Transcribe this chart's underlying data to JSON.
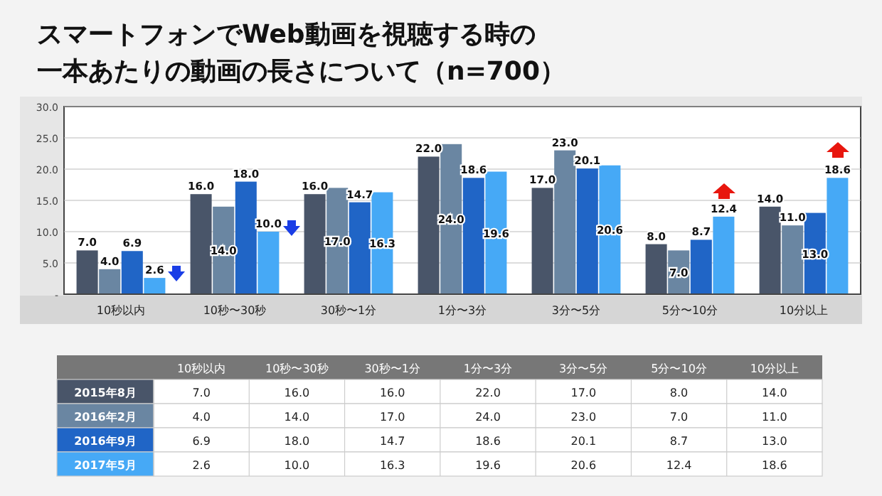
{
  "chart_data": {
    "type": "bar",
    "title": "スマートフォンでWeb動画を視聴する時の",
    "subtitle": "一本あたりの動画の長さについて（n=700）",
    "categories": [
      "10秒以内",
      "10秒〜30秒",
      "30秒〜1分",
      "1分〜3分",
      "3分〜5分",
      "5分〜10分",
      "10分以上"
    ],
    "series": [
      {
        "name": "2015年8月",
        "color": "#495569",
        "values": [
          7.0,
          16.0,
          16.0,
          22.0,
          17.0,
          8.0,
          14.0
        ],
        "value_labels": [
          "7.0",
          "16.0",
          "16.0",
          "22.0",
          "17.0",
          "8.0",
          "14.0"
        ]
      },
      {
        "name": "2016年2月",
        "color": "#6a86a2",
        "values": [
          4.0,
          14.0,
          17.0,
          24.0,
          23.0,
          7.0,
          11.0
        ],
        "value_labels": [
          "4.0",
          "14.0",
          "17.0",
          "24.0",
          "23.0",
          "7.0",
          "11.0"
        ]
      },
      {
        "name": "2016年9月",
        "color": "#2065c6",
        "values": [
          6.9,
          18.0,
          14.7,
          18.6,
          20.1,
          8.7,
          13.0
        ],
        "value_labels": [
          "6.9",
          "18.0",
          "14.7",
          "18.6",
          "20.1",
          "8.7",
          "13.0"
        ]
      },
      {
        "name": "2017年5月",
        "color": "#46a9f6",
        "values": [
          2.6,
          10.0,
          16.3,
          19.6,
          20.6,
          12.4,
          18.6
        ],
        "value_labels": [
          "2.6",
          "10.0",
          "16.3",
          "19.6",
          "20.6",
          "12.4",
          "18.6"
        ]
      }
    ],
    "ylim": [
      0,
      30
    ],
    "yticks": [
      {
        "value": 0,
        "label": "-"
      },
      {
        "value": 5,
        "label": "5.0"
      },
      {
        "value": 10,
        "label": "10.0"
      },
      {
        "value": 15,
        "label": "15.0"
      },
      {
        "value": 20,
        "label": "20.0"
      },
      {
        "value": 25,
        "label": "25.0"
      },
      {
        "value": 30,
        "label": "30.0"
      }
    ],
    "grid": "y",
    "legend": "bottom"
  }
}
